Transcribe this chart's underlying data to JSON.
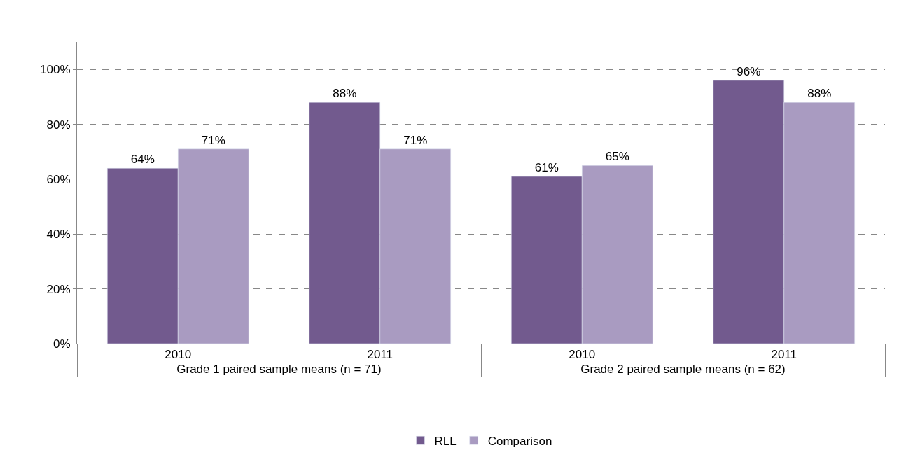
{
  "chart_data": {
    "type": "bar",
    "categories": [
      "2010",
      "2011",
      "2010",
      "2011"
    ],
    "annotations": [
      "Grade 1 paired sample means (n = 71)",
      "Grade 2 paired sample means (n = 62)"
    ],
    "series": [
      {
        "name": "RLL",
        "color": "#725a8e",
        "values": [
          64,
          88,
          61,
          96
        ],
        "value_labels": [
          "64%",
          "88%",
          "61%",
          "96%"
        ]
      },
      {
        "name": "Comparison",
        "color": "#a99bc1",
        "values": [
          71,
          71,
          65,
          88
        ],
        "value_labels": [
          "71%",
          "71%",
          "65%",
          "88%"
        ]
      }
    ],
    "ylim": [
      0,
      110
    ],
    "yticks": [
      {
        "value": 0,
        "label": "0%"
      },
      {
        "value": 20,
        "label": "20%"
      },
      {
        "value": 40,
        "label": "40%"
      },
      {
        "value": 60,
        "label": "60%"
      },
      {
        "value": 80,
        "label": "80%"
      },
      {
        "value": 100,
        "label": "100%"
      }
    ],
    "grid": "y",
    "line_style": "dashed",
    "legend": "bottom"
  }
}
